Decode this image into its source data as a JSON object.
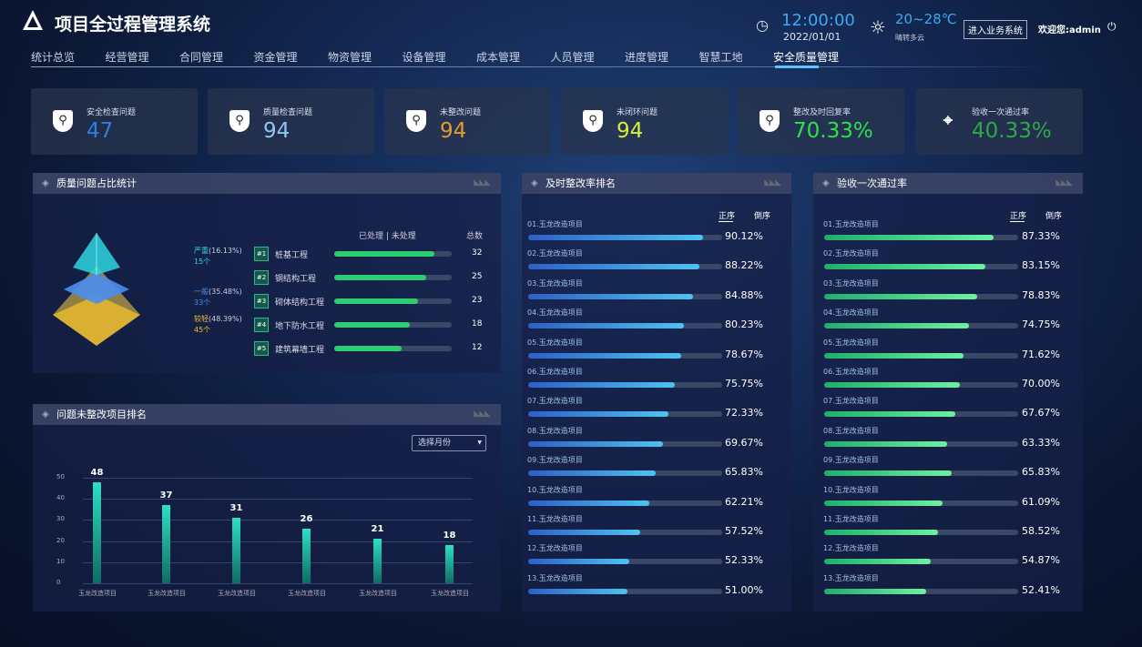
{
  "header": {
    "title": "项目全过程管理系统",
    "time": "12:00:00",
    "date": "2022/01/01",
    "temperature": "20~28℃",
    "weather": "晴转多云",
    "enter_button": "进入业务系统",
    "welcome": "欢迎您:admin"
  },
  "nav": {
    "items": [
      "统计总览",
      "经营管理",
      "合同管理",
      "资金管理",
      "物资管理",
      "设备管理",
      "成本管理",
      "人员管理",
      "进度管理",
      "智慧工地",
      "安全质量管理"
    ],
    "active": 10
  },
  "cards": [
    {
      "label": "安全检查问题",
      "value": "47",
      "color": "#2f7fe0",
      "icon": "shield-search-icon"
    },
    {
      "label": "质量检查问题",
      "value": "94",
      "color": "#8fc7f0",
      "icon": "shield-search-icon"
    },
    {
      "label": "未整改问题",
      "value": "94",
      "color": "#e49a2d",
      "icon": "shield-search-icon"
    },
    {
      "label": "未闭环问题",
      "value": "94",
      "color": "#d5f03a",
      "icon": "shield-search-icon"
    },
    {
      "label": "整改及时回复率",
      "value": "70.33%",
      "color": "#2ee04a",
      "icon": "shield-search-icon"
    },
    {
      "label": "验收一次通过率",
      "value": "40.33%",
      "color": "#2fa84a",
      "icon": "location-pin-icon"
    }
  ],
  "quality": {
    "title": "质量问题占比统计",
    "levels": [
      {
        "name": "严重",
        "pct": "(16.13%)",
        "count": "15个",
        "color": "#2fd5e0"
      },
      {
        "name": "一般",
        "pct": "(35.48%)",
        "count": "33个",
        "color": "#4a8ef0"
      },
      {
        "name": "较轻",
        "pct": "(48.39%)",
        "count": "45个",
        "color": "#f0c030"
      }
    ],
    "col_done": "已处理",
    "col_undone": "未处理",
    "col_total": "总数",
    "rows": [
      {
        "rank": "#1",
        "name": "桩基工程",
        "done": 0.85,
        "total": "32"
      },
      {
        "rank": "#2",
        "name": "钢结构工程",
        "done": 0.78,
        "total": "25"
      },
      {
        "rank": "#3",
        "name": "砌体结构工程",
        "done": 0.71,
        "total": "23"
      },
      {
        "rank": "#4",
        "name": "地下防水工程",
        "done": 0.64,
        "total": "18"
      },
      {
        "rank": "#5",
        "name": "建筑幕墙工程",
        "done": 0.57,
        "total": "12"
      }
    ]
  },
  "unfixed": {
    "title": "问题未整改项目排名",
    "select_placeholder": "选择月份",
    "chart_data": {
      "type": "bar",
      "categories": [
        "玉龙改造项目",
        "玉龙改造项目",
        "玉龙改造项目",
        "玉龙改造项目",
        "玉龙改造项目",
        "玉龙改造项目"
      ],
      "values": [
        48,
        37,
        31,
        26,
        21,
        18
      ],
      "ylim": [
        0,
        50
      ],
      "yticks": [
        "0",
        "10",
        "20",
        "30",
        "40",
        "50"
      ],
      "grid": true
    }
  },
  "timely": {
    "title": "及时整改率排名",
    "sort_asc": "正序",
    "sort_desc": "倒序",
    "color": "#3a9df0",
    "items": [
      [
        "01.玉龙改造项目",
        90.12
      ],
      [
        "02.玉龙改造项目",
        88.22
      ],
      [
        "03.玉龙改造项目",
        84.88
      ],
      [
        "04.玉龙改造项目",
        80.23
      ],
      [
        "05.玉龙改造项目",
        78.67
      ],
      [
        "06.玉龙改造项目",
        75.75
      ],
      [
        "07.玉龙改造项目",
        72.33
      ],
      [
        "08.玉龙改造项目",
        69.67
      ],
      [
        "09.玉龙改造项目",
        65.83
      ],
      [
        "10.玉龙改造项目",
        62.21
      ],
      [
        "11.玉龙改造项目",
        57.52
      ],
      [
        "12.玉龙改造项目",
        52.33
      ],
      [
        "13.玉龙改造项目",
        51.0
      ]
    ]
  },
  "pass": {
    "title": "验收一次通过率",
    "sort_asc": "正序",
    "sort_desc": "倒序",
    "color": "#3fdc7e",
    "items": [
      [
        "01.玉龙改造项目",
        87.33
      ],
      [
        "02.玉龙改造项目",
        83.15
      ],
      [
        "03.玉龙改造项目",
        78.83
      ],
      [
        "04.玉龙改造项目",
        74.75
      ],
      [
        "05.玉龙改造项目",
        71.62
      ],
      [
        "06.玉龙改造项目",
        70.0
      ],
      [
        "07.玉龙改造项目",
        67.67
      ],
      [
        "08.玉龙改造项目",
        63.33
      ],
      [
        "09.玉龙改造项目",
        65.83
      ],
      [
        "10.玉龙改造项目",
        61.09
      ],
      [
        "11.玉龙改造项目",
        58.52
      ],
      [
        "12.玉龙改造项目",
        54.87
      ],
      [
        "13.玉龙改造项目",
        52.41
      ]
    ]
  }
}
